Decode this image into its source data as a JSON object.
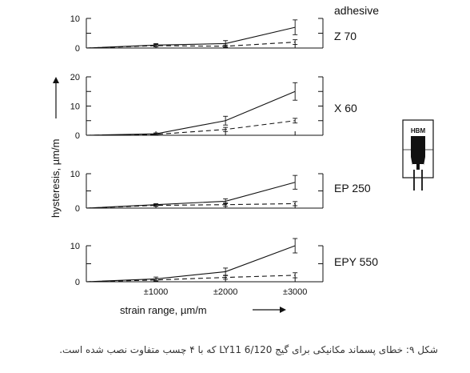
{
  "chart_data": {
    "type": "line",
    "header": "adhesive",
    "ylabel": "hysteresis,  µm/m",
    "xlabel": "strain range,  µm/m",
    "x": [
      0,
      1000,
      2000,
      3000
    ],
    "xtick_labels": [
      "±1000",
      "±2000",
      "±3000"
    ],
    "grid": false,
    "panels": [
      {
        "adhesive": "Z70",
        "ylim": [
          0,
          10
        ],
        "yticks": [
          0,
          10
        ],
        "series": [
          {
            "style": "solid",
            "values": [
              0,
              1.0,
              1.5,
              7.0
            ],
            "error": [
              0,
              0.5,
              1.0,
              2.5
            ]
          },
          {
            "style": "dashed",
            "values": [
              0,
              0.8,
              0.6,
              2.0
            ],
            "error": [
              0,
              0.4,
              0.4,
              0.8
            ]
          }
        ]
      },
      {
        "adhesive": "X60",
        "ylim": [
          0,
          20
        ],
        "yticks": [
          0,
          10,
          20
        ],
        "series": [
          {
            "style": "solid",
            "values": [
              0,
              0.5,
              5.0,
              15.0
            ],
            "error": [
              0,
              0.3,
              1.5,
              3.0
            ]
          },
          {
            "style": "dashed",
            "values": [
              0,
              0.3,
              2.0,
              5.0
            ],
            "error": [
              0,
              0.2,
              0.7,
              0.8
            ]
          }
        ]
      },
      {
        "adhesive": "EP250",
        "ylim": [
          0,
          10
        ],
        "yticks": [
          0,
          10
        ],
        "series": [
          {
            "style": "solid",
            "values": [
              0,
              1.0,
              2.0,
              7.5
            ],
            "error": [
              0,
              0.3,
              0.7,
              2.0
            ]
          },
          {
            "style": "dashed",
            "values": [
              0,
              0.8,
              1.0,
              1.3
            ],
            "error": [
              0,
              0.3,
              0.5,
              0.6
            ]
          }
        ]
      },
      {
        "adhesive": "EPY550",
        "ylim": [
          0,
          10
        ],
        "yticks": [
          0,
          10
        ],
        "series": [
          {
            "style": "solid",
            "values": [
              0,
              0.8,
              2.8,
              10.0
            ],
            "error": [
              0,
              0.5,
              1.0,
              2.0
            ]
          },
          {
            "style": "dashed",
            "values": [
              0,
              0.5,
              1.2,
              1.8
            ],
            "error": [
              0,
              0.3,
              0.5,
              0.7
            ]
          }
        ]
      }
    ]
  },
  "gauge_logo": "HBM",
  "caption": "شکل ۹: خطای پسماند مکانیکی برای گیج  LY11 6/120 که با ۴ چسب متفاوت نصب شده است."
}
